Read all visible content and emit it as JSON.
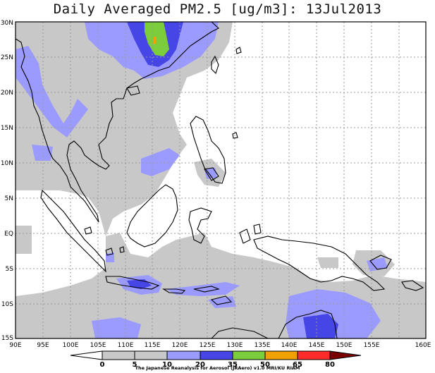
{
  "title": "Daily Averaged PM2.5 [ug/m3]: 13Jul2013",
  "map": {
    "lon_labels": [
      "90E",
      "95E",
      "100E",
      "105E",
      "110E",
      "115E",
      "120E",
      "125E",
      "130E",
      "135E",
      "140E",
      "145E",
      "150E",
      "155E",
      "160E"
    ],
    "lat_labels": [
      "30N",
      "25N",
      "20N",
      "15N",
      "10N",
      "5N",
      "EQ",
      "5S",
      "10S",
      "15S"
    ],
    "colors": {
      "land": "#ffffff",
      "level_5_10": "#c8c8c8",
      "level_10_20": "#9a9aff",
      "level_20_35": "#4646e6",
      "level_35_50": "#7ccd3c",
      "level_50_65": "#f0a000",
      "grid": "#999999"
    }
  },
  "colorbar": {
    "labels": [
      "0",
      "5",
      "10",
      "20",
      "35",
      "50",
      "65",
      "80"
    ],
    "colors": [
      "#ffffff",
      "#c8c8c8",
      "#9a9aff",
      "#4646e6",
      "#7ccd3c",
      "#f0a000",
      "#ff2a2a",
      "#7a0000"
    ]
  },
  "credit": "The Japanese Reanalysis for Aerosol (JRAero) v1.0 MRI/KU RIAM"
}
